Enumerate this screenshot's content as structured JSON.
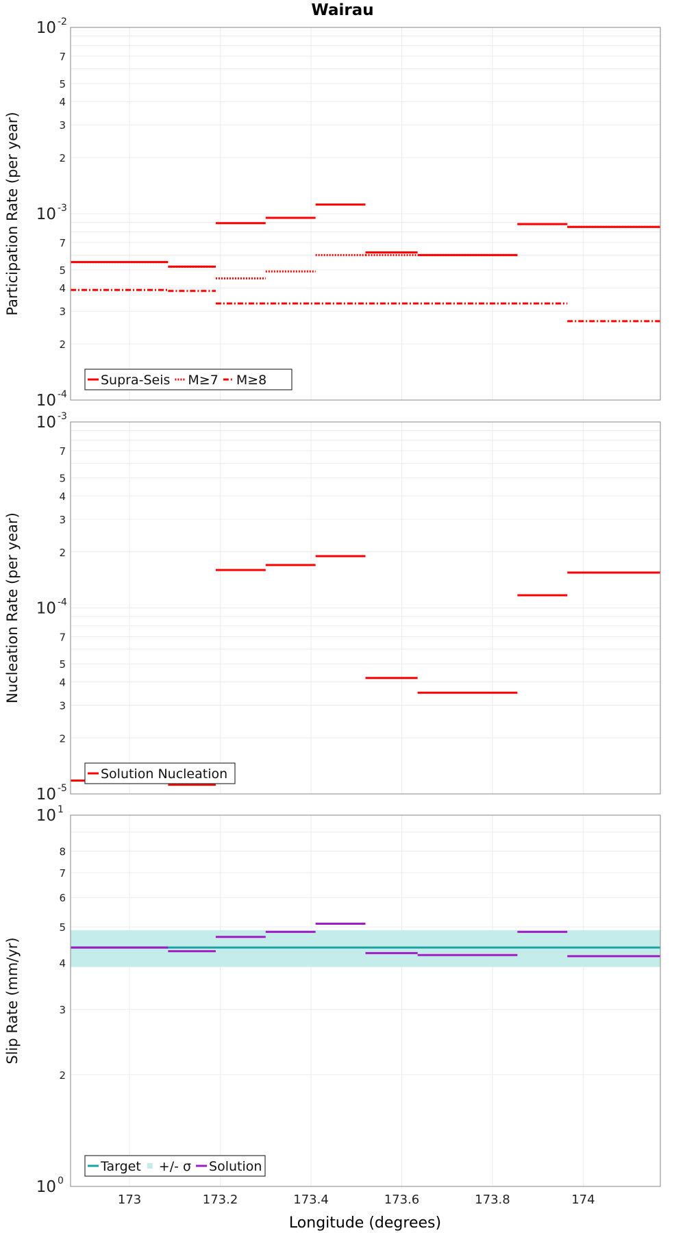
{
  "title": "Wairau",
  "xaxis": {
    "label": "Longitude (degrees)",
    "range": [
      172.87,
      174.17
    ],
    "ticks": [
      173,
      173.2,
      173.4,
      173.6,
      173.8,
      174
    ],
    "tick_labels": [
      "173",
      "173.2",
      "173.4",
      "173.6",
      "173.8",
      "174"
    ]
  },
  "colors": {
    "red": "#ff0000",
    "teal": "#1aa3a3",
    "band": "#c4ecea",
    "purple": "#a21bc4"
  },
  "chart_data": [
    {
      "type": "line",
      "ylabel": "Participation Rate (per year)",
      "yscale": "log",
      "ylim": [
        0.0001,
        0.01
      ],
      "y_major_ticks": [
        {
          "mant": "10",
          "exp": "-4"
        },
        {
          "mant": "10",
          "exp": "-3"
        },
        {
          "mant": "10",
          "exp": "-2"
        }
      ],
      "y_minor_labels": [
        "2",
        "3",
        "4",
        "5",
        "7"
      ],
      "grid": true,
      "legend": {
        "position": "bottom-left",
        "entries": [
          "Supra-Seis",
          "M≥7",
          "M≥8"
        ]
      },
      "series": [
        {
          "name": "Supra-Seis",
          "style": "solid",
          "color": "#ff0000",
          "segments": [
            {
              "x0": 172.87,
              "x1": 173.085,
              "y": 0.00055
            },
            {
              "x0": 173.085,
              "x1": 173.19,
              "y": 0.00052
            },
            {
              "x0": 173.19,
              "x1": 173.3,
              "y": 0.00089
            },
            {
              "x0": 173.3,
              "x1": 173.41,
              "y": 0.00095
            },
            {
              "x0": 173.41,
              "x1": 173.52,
              "y": 0.00112
            },
            {
              "x0": 173.52,
              "x1": 173.635,
              "y": 0.00062
            },
            {
              "x0": 173.635,
              "x1": 173.855,
              "y": 0.0006
            },
            {
              "x0": 173.855,
              "x1": 173.965,
              "y": 0.00088
            },
            {
              "x0": 173.965,
              "x1": 174.17,
              "y": 0.00085
            }
          ]
        },
        {
          "name": "M≥7",
          "style": "dotted",
          "color": "#ff0000",
          "segments": [
            {
              "x0": 172.87,
              "x1": 173.085,
              "y": 0.00055
            },
            {
              "x0": 173.085,
              "x1": 173.19,
              "y": 0.00052
            },
            {
              "x0": 173.19,
              "x1": 173.3,
              "y": 0.00045
            },
            {
              "x0": 173.3,
              "x1": 173.41,
              "y": 0.00049
            },
            {
              "x0": 173.41,
              "x1": 173.52,
              "y": 0.0006
            },
            {
              "x0": 173.52,
              "x1": 173.635,
              "y": 0.0006
            },
            {
              "x0": 173.635,
              "x1": 173.855,
              "y": 0.0006
            },
            {
              "x0": 173.855,
              "x1": 173.965,
              "y": 0.00088
            },
            {
              "x0": 173.965,
              "x1": 174.17,
              "y": 0.00085
            }
          ]
        },
        {
          "name": "M≥8",
          "style": "dashdot",
          "color": "#ff0000",
          "segments": [
            {
              "x0": 172.87,
              "x1": 173.085,
              "y": 0.00039
            },
            {
              "x0": 173.085,
              "x1": 173.19,
              "y": 0.000385
            },
            {
              "x0": 173.19,
              "x1": 173.965,
              "y": 0.00033
            },
            {
              "x0": 173.965,
              "x1": 174.17,
              "y": 0.000265
            }
          ]
        }
      ]
    },
    {
      "type": "line",
      "ylabel": "Nucleation Rate (per year)",
      "yscale": "log",
      "ylim": [
        1e-05,
        0.001
      ],
      "y_major_ticks": [
        {
          "mant": "10",
          "exp": "-5"
        },
        {
          "mant": "10",
          "exp": "-4"
        },
        {
          "mant": "10",
          "exp": "-3"
        }
      ],
      "y_minor_labels": [
        "2",
        "3",
        "4",
        "5",
        "7"
      ],
      "grid": true,
      "legend": {
        "position": "bottom-left",
        "entries": [
          "Solution Nucleation"
        ]
      },
      "series": [
        {
          "name": "Solution Nucleation",
          "style": "solid",
          "color": "#ff0000",
          "segments": [
            {
              "x0": 172.87,
              "x1": 173.085,
              "y": 1.18e-05
            },
            {
              "x0": 173.085,
              "x1": 173.19,
              "y": 1.12e-05
            },
            {
              "x0": 173.19,
              "x1": 173.3,
              "y": 0.00016
            },
            {
              "x0": 173.3,
              "x1": 173.41,
              "y": 0.00017
            },
            {
              "x0": 173.41,
              "x1": 173.52,
              "y": 0.00019
            },
            {
              "x0": 173.52,
              "x1": 173.635,
              "y": 4.2e-05
            },
            {
              "x0": 173.635,
              "x1": 173.855,
              "y": 3.5e-05
            },
            {
              "x0": 173.855,
              "x1": 173.965,
              "y": 0.000117
            },
            {
              "x0": 173.965,
              "x1": 174.17,
              "y": 0.000155
            }
          ]
        }
      ]
    },
    {
      "type": "line",
      "ylabel": "Slip Rate (mm/yr)",
      "yscale": "log",
      "ylim": [
        1,
        10
      ],
      "y_major_ticks": [
        {
          "mant": "10",
          "exp": "0"
        },
        {
          "mant": "10",
          "exp": "1"
        }
      ],
      "y_minor_labels": [
        "2",
        "3",
        "4",
        "5",
        "6",
        "7",
        "8"
      ],
      "grid": true,
      "legend": {
        "position": "bottom-left",
        "entries": [
          "Target",
          "+/- σ",
          "Solution"
        ]
      },
      "band": {
        "name": "+/- σ",
        "color": "#c4ecea",
        "y0": 3.9,
        "y1": 4.9
      },
      "series": [
        {
          "name": "Target",
          "style": "solid",
          "color": "#1aa3a3",
          "segments": [
            {
              "x0": 172.87,
              "x1": 174.17,
              "y": 4.4
            }
          ]
        },
        {
          "name": "Solution",
          "style": "solid",
          "color": "#a21bc4",
          "segments": [
            {
              "x0": 172.87,
              "x1": 173.085,
              "y": 4.4
            },
            {
              "x0": 173.085,
              "x1": 173.19,
              "y": 4.3
            },
            {
              "x0": 173.19,
              "x1": 173.3,
              "y": 4.7
            },
            {
              "x0": 173.3,
              "x1": 173.41,
              "y": 4.85
            },
            {
              "x0": 173.41,
              "x1": 173.52,
              "y": 5.1
            },
            {
              "x0": 173.52,
              "x1": 173.635,
              "y": 4.25
            },
            {
              "x0": 173.635,
              "x1": 173.855,
              "y": 4.2
            },
            {
              "x0": 173.855,
              "x1": 173.965,
              "y": 4.85
            },
            {
              "x0": 173.965,
              "x1": 174.17,
              "y": 4.17
            }
          ]
        }
      ]
    }
  ]
}
